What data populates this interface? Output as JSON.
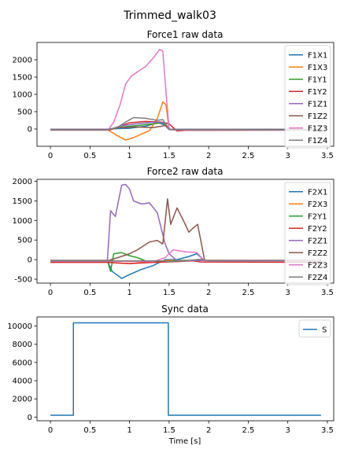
{
  "figure": {
    "suptitle": "Trimmed_walk03"
  },
  "chart_data": [
    {
      "type": "line",
      "title": "Force1 raw data",
      "xlabel": "",
      "ylabel": "",
      "xlim": [
        -0.17,
        3.58
      ],
      "ylim": [
        -500,
        2500
      ],
      "xticks": [
        0.0,
        0.5,
        1.0,
        1.5,
        2.0,
        2.5,
        3.0,
        3.5
      ],
      "yticks": [
        0,
        500,
        1000,
        1500,
        2000
      ],
      "legend_placement": "upper-right",
      "grid": false,
      "series": [
        {
          "name": "F1X1",
          "color": "#1f77b4",
          "points": [
            [
              0,
              -10
            ],
            [
              0.7,
              -10
            ],
            [
              0.85,
              10
            ],
            [
              1.0,
              20
            ],
            [
              1.2,
              80
            ],
            [
              1.35,
              180
            ],
            [
              1.45,
              120
            ],
            [
              1.52,
              -10
            ],
            [
              3.42,
              -10
            ]
          ]
        },
        {
          "name": "F1X3",
          "color": "#ff7f0e",
          "points": [
            [
              0,
              -20
            ],
            [
              0.72,
              -20
            ],
            [
              0.85,
              -200
            ],
            [
              0.95,
              -320
            ],
            [
              1.05,
              -250
            ],
            [
              1.15,
              -150
            ],
            [
              1.25,
              -50
            ],
            [
              1.35,
              300
            ],
            [
              1.42,
              780
            ],
            [
              1.46,
              700
            ],
            [
              1.5,
              0
            ],
            [
              1.55,
              -20
            ],
            [
              3.42,
              -20
            ]
          ]
        },
        {
          "name": "F1Y1",
          "color": "#2ca02c",
          "points": [
            [
              0,
              -10
            ],
            [
              0.75,
              -10
            ],
            [
              0.9,
              60
            ],
            [
              1.1,
              100
            ],
            [
              1.3,
              150
            ],
            [
              1.42,
              180
            ],
            [
              1.5,
              -10
            ],
            [
              3.42,
              -10
            ]
          ]
        },
        {
          "name": "F1Y2",
          "color": "#d62728",
          "points": [
            [
              0,
              -30
            ],
            [
              0.75,
              -30
            ],
            [
              0.9,
              100
            ],
            [
              1.0,
              180
            ],
            [
              1.2,
              220
            ],
            [
              1.4,
              200
            ],
            [
              1.5,
              150
            ],
            [
              1.6,
              -60
            ],
            [
              1.7,
              -40
            ],
            [
              3.42,
              -30
            ]
          ]
        },
        {
          "name": "F1Z1",
          "color": "#9467bd",
          "points": [
            [
              0,
              -10
            ],
            [
              0.75,
              -10
            ],
            [
              0.9,
              100
            ],
            [
              1.1,
              150
            ],
            [
              1.3,
              200
            ],
            [
              1.45,
              180
            ],
            [
              1.5,
              -10
            ],
            [
              3.42,
              -10
            ]
          ]
        },
        {
          "name": "F1Z2",
          "color": "#8c564b",
          "points": [
            [
              0,
              -20
            ],
            [
              0.7,
              -20
            ],
            [
              0.85,
              40
            ],
            [
              1.05,
              60
            ],
            [
              1.3,
              40
            ],
            [
              1.45,
              100
            ],
            [
              1.5,
              -20
            ],
            [
              3.42,
              -20
            ]
          ]
        },
        {
          "name": "F1Z3",
          "color": "#e377c2",
          "points": [
            [
              0,
              -30
            ],
            [
              0.73,
              -30
            ],
            [
              0.8,
              200
            ],
            [
              0.88,
              700
            ],
            [
              0.95,
              1300
            ],
            [
              1.02,
              1520
            ],
            [
              1.1,
              1650
            ],
            [
              1.2,
              1800
            ],
            [
              1.3,
              2050
            ],
            [
              1.38,
              2300
            ],
            [
              1.42,
              2250
            ],
            [
              1.47,
              800
            ],
            [
              1.5,
              0
            ],
            [
              1.55,
              -30
            ],
            [
              3.42,
              -30
            ]
          ]
        },
        {
          "name": "F1Z4",
          "color": "#7f7f7f",
          "points": [
            [
              0,
              -30
            ],
            [
              0.7,
              -30
            ],
            [
              0.85,
              50
            ],
            [
              0.95,
              200
            ],
            [
              1.05,
              330
            ],
            [
              1.2,
              310
            ],
            [
              1.35,
              250
            ],
            [
              1.42,
              270
            ],
            [
              1.5,
              -20
            ],
            [
              3.42,
              -30
            ]
          ]
        }
      ]
    },
    {
      "type": "line",
      "title": "Force2 raw data",
      "xlabel": "",
      "ylabel": "",
      "xlim": [
        -0.17,
        3.58
      ],
      "ylim": [
        -600,
        2050
      ],
      "xticks": [
        0.0,
        0.5,
        1.0,
        1.5,
        2.0,
        2.5,
        3.0,
        3.5
      ],
      "yticks": [
        -500,
        0,
        500,
        1000,
        1500,
        2000
      ],
      "legend_placement": "upper-right",
      "grid": false,
      "series": [
        {
          "name": "F2X1",
          "color": "#1f77b4",
          "points": [
            [
              0,
              -40
            ],
            [
              0.72,
              -40
            ],
            [
              0.78,
              -300
            ],
            [
              0.9,
              -480
            ],
            [
              1.0,
              -380
            ],
            [
              1.15,
              -250
            ],
            [
              1.3,
              -150
            ],
            [
              1.45,
              0
            ],
            [
              1.6,
              0
            ],
            [
              1.75,
              80
            ],
            [
              1.85,
              150
            ],
            [
              1.95,
              -30
            ],
            [
              3.42,
              -40
            ]
          ]
        },
        {
          "name": "F2X3",
          "color": "#ff7f0e",
          "points": [
            [
              0,
              -20
            ],
            [
              0.72,
              -20
            ],
            [
              0.8,
              -80
            ],
            [
              1.0,
              -100
            ],
            [
              1.3,
              -50
            ],
            [
              1.5,
              -20
            ],
            [
              1.9,
              -20
            ],
            [
              3.42,
              -20
            ]
          ]
        },
        {
          "name": "F2Y1",
          "color": "#2ca02c",
          "points": [
            [
              0,
              -20
            ],
            [
              0.72,
              -20
            ],
            [
              0.76,
              -300
            ],
            [
              0.8,
              150
            ],
            [
              0.9,
              180
            ],
            [
              1.0,
              100
            ],
            [
              1.1,
              50
            ],
            [
              1.2,
              -30
            ],
            [
              1.45,
              -60
            ],
            [
              1.6,
              -20
            ],
            [
              3.42,
              -20
            ]
          ]
        },
        {
          "name": "F2Y2",
          "color": "#d62728",
          "points": [
            [
              0,
              -70
            ],
            [
              0.72,
              -70
            ],
            [
              0.8,
              -80
            ],
            [
              1.0,
              -100
            ],
            [
              1.2,
              -80
            ],
            [
              1.45,
              -60
            ],
            [
              1.6,
              -50
            ],
            [
              1.8,
              -30
            ],
            [
              1.9,
              -60
            ],
            [
              3.42,
              -70
            ]
          ]
        },
        {
          "name": "F2Z1",
          "color": "#9467bd",
          "points": [
            [
              0,
              -20
            ],
            [
              0.72,
              -20
            ],
            [
              0.76,
              1250
            ],
            [
              0.82,
              1100
            ],
            [
              0.9,
              1900
            ],
            [
              0.95,
              1920
            ],
            [
              1.0,
              1800
            ],
            [
              1.05,
              1500
            ],
            [
              1.15,
              1420
            ],
            [
              1.25,
              1450
            ],
            [
              1.35,
              1200
            ],
            [
              1.45,
              400
            ],
            [
              1.5,
              150
            ],
            [
              1.6,
              -30
            ],
            [
              1.9,
              -20
            ],
            [
              3.42,
              -20
            ]
          ]
        },
        {
          "name": "F2Z2",
          "color": "#8c564b",
          "points": [
            [
              0,
              -30
            ],
            [
              0.72,
              -30
            ],
            [
              0.85,
              50
            ],
            [
              1.0,
              150
            ],
            [
              1.1,
              250
            ],
            [
              1.25,
              450
            ],
            [
              1.35,
              490
            ],
            [
              1.42,
              400
            ],
            [
              1.48,
              1550
            ],
            [
              1.52,
              900
            ],
            [
              1.6,
              1320
            ],
            [
              1.68,
              1000
            ],
            [
              1.75,
              700
            ],
            [
              1.8,
              800
            ],
            [
              1.86,
              900
            ],
            [
              1.95,
              -30
            ],
            [
              3.42,
              -30
            ]
          ]
        },
        {
          "name": "F2Z3",
          "color": "#e377c2",
          "points": [
            [
              0,
              -40
            ],
            [
              0.72,
              -40
            ],
            [
              1.3,
              -50
            ],
            [
              1.45,
              50
            ],
            [
              1.55,
              250
            ],
            [
              1.7,
              200
            ],
            [
              1.85,
              180
            ],
            [
              1.95,
              -40
            ],
            [
              3.42,
              -40
            ]
          ]
        },
        {
          "name": "F2Z4",
          "color": "#7f7f7f",
          "points": [
            [
              0,
              -30
            ],
            [
              1.4,
              -30
            ],
            [
              1.5,
              -50
            ],
            [
              1.7,
              -30
            ],
            [
              1.9,
              10
            ],
            [
              2.0,
              -30
            ],
            [
              3.42,
              -30
            ]
          ]
        }
      ]
    },
    {
      "type": "line",
      "title": "Sync data",
      "xlabel": "Time [s]",
      "ylabel": "",
      "xlim": [
        -0.17,
        3.58
      ],
      "ylim": [
        -400,
        11000
      ],
      "xticks": [
        0.0,
        0.5,
        1.0,
        1.5,
        2.0,
        2.5,
        3.0,
        3.5
      ],
      "yticks": [
        0,
        2000,
        4000,
        6000,
        8000,
        10000
      ],
      "legend_placement": "upper-right",
      "grid": false,
      "series": [
        {
          "name": "S",
          "color": "#1f77b4",
          "points": [
            [
              0,
              200
            ],
            [
              0.29,
              200
            ],
            [
              0.29,
              10350
            ],
            [
              1.49,
              10350
            ],
            [
              1.49,
              200
            ],
            [
              3.42,
              200
            ]
          ]
        }
      ]
    }
  ]
}
